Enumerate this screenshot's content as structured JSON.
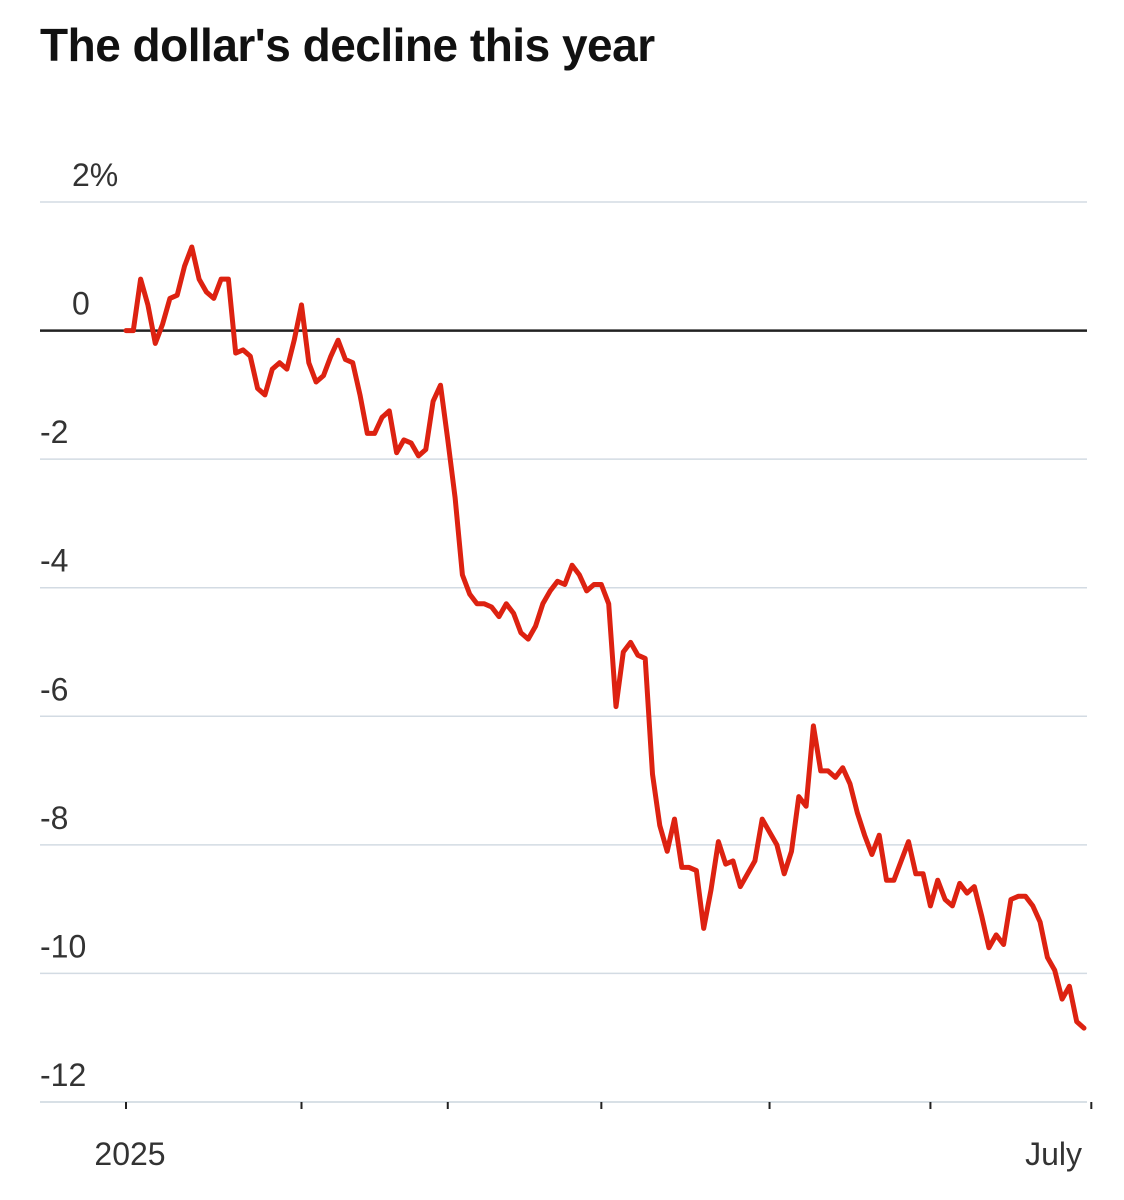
{
  "chart_data": {
    "type": "line",
    "title": "The dollar's decline this year",
    "xlabel": "",
    "ylabel": "",
    "ylim": [
      -12,
      2
    ],
    "yticks": [
      2,
      0,
      -2,
      -4,
      -6,
      -8,
      -10,
      -12
    ],
    "ytick_labels": [
      "2%",
      "0",
      "-2",
      "-4",
      "-6",
      "-8",
      "-10",
      "-12"
    ],
    "xtick_labels": [
      {
        "index": 0,
        "label": "2025"
      },
      {
        "index": 132,
        "label": "July"
      }
    ],
    "minor_xtick_indices": [
      0,
      24,
      44,
      65,
      88,
      110,
      132
    ],
    "baseline": 0,
    "grid": true,
    "colors": {
      "line": "#dd2211",
      "grid": "#d3dbe3",
      "zero_line": "#222222",
      "axis": "#222222",
      "text": "#333333",
      "title": "#111111"
    },
    "series": [
      {
        "values": [
          0.0,
          0.0,
          0.8,
          0.4,
          -0.2,
          0.1,
          0.5,
          0.55,
          1.0,
          1.3,
          0.8,
          0.6,
          0.5,
          0.8,
          0.8,
          -0.35,
          -0.3,
          -0.4,
          -0.9,
          -1.0,
          -0.6,
          -0.5,
          -0.6,
          -0.15,
          0.4,
          -0.5,
          -0.8,
          -0.7,
          -0.4,
          -0.15,
          -0.45,
          -0.5,
          -1.0,
          -1.6,
          -1.6,
          -1.35,
          -1.25,
          -1.9,
          -1.7,
          -1.75,
          -1.95,
          -1.85,
          -1.1,
          -0.85,
          -1.7,
          -2.6,
          -3.8,
          -4.1,
          -4.25,
          -4.25,
          -4.3,
          -4.45,
          -4.25,
          -4.4,
          -4.7,
          -4.8,
          -4.6,
          -4.25,
          -4.05,
          -3.9,
          -3.95,
          -3.65,
          -3.8,
          -4.05,
          -3.95,
          -3.95,
          -4.25,
          -5.85,
          -5.0,
          -4.85,
          -5.05,
          -5.1,
          -6.9,
          -7.7,
          -8.1,
          -7.6,
          -8.35,
          -8.35,
          -8.4,
          -9.3,
          -8.7,
          -7.95,
          -8.3,
          -8.25,
          -8.65,
          -8.45,
          -8.25,
          -7.6,
          -7.8,
          -8.0,
          -8.45,
          -8.1,
          -7.25,
          -7.4,
          -6.15,
          -6.85,
          -6.85,
          -6.95,
          -6.8,
          -7.05,
          -7.5,
          -7.85,
          -8.15,
          -7.85,
          -8.55,
          -8.55,
          -8.25,
          -7.95,
          -8.45,
          -8.45,
          -8.95,
          -8.55,
          -8.85,
          -8.95,
          -8.6,
          -8.75,
          -8.65,
          -9.1,
          -9.6,
          -9.4,
          -9.55,
          -8.85,
          -8.8,
          -8.8,
          -8.95,
          -9.2,
          -9.75,
          -9.95,
          -10.4,
          -10.2,
          -10.75,
          -10.85
        ]
      }
    ]
  }
}
